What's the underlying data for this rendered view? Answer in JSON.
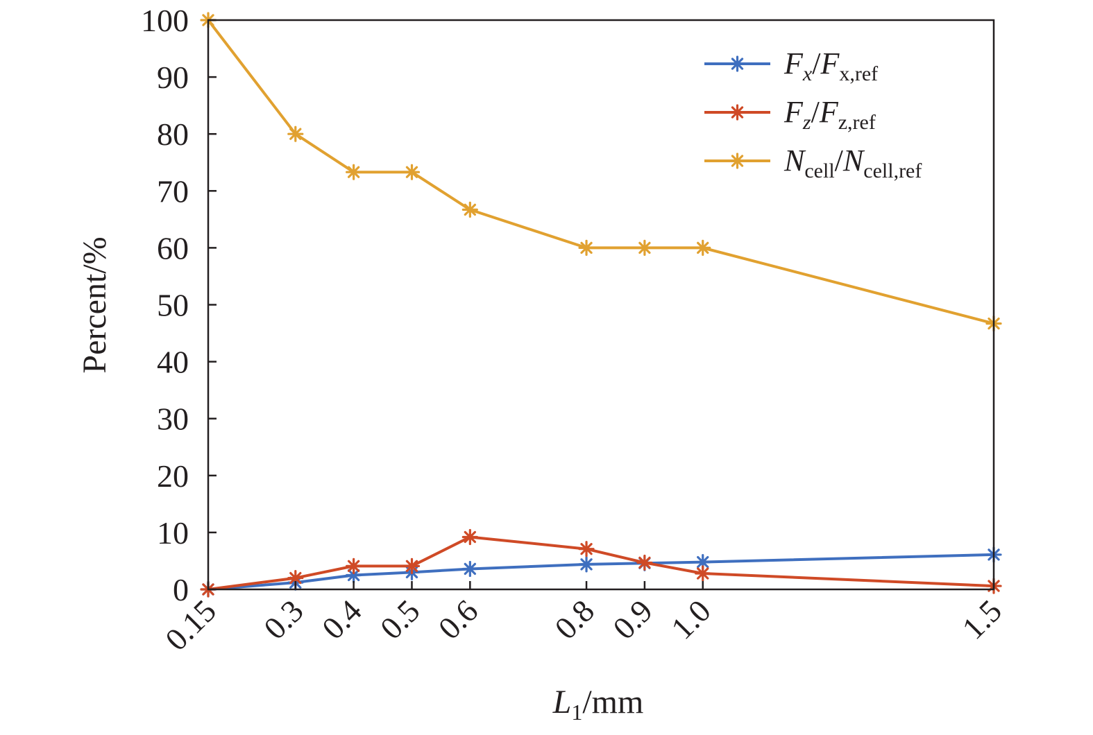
{
  "chart_data": {
    "type": "line",
    "x": [
      0.15,
      0.3,
      0.4,
      0.5,
      0.6,
      0.8,
      0.9,
      1.0,
      1.5
    ],
    "x_tick_labels": [
      "0.15",
      "0.3",
      "0.4",
      "0.5",
      "0.6",
      "0.8",
      "0.9",
      "1.0",
      "1.5"
    ],
    "xlabel": {
      "main": "L",
      "sub": "1",
      "unit": "/mm"
    },
    "ylabel": "Percent/%",
    "ylim": [
      0,
      100
    ],
    "y_ticks": [
      0,
      10,
      20,
      30,
      40,
      50,
      60,
      70,
      80,
      90,
      100
    ],
    "grid": false,
    "legend_position": "top-right",
    "series": [
      {
        "name": "Fx/Fx,ref",
        "legend": {
          "a": "F",
          "a_sub": "x",
          "b": "F",
          "b_sub": "x,ref"
        },
        "color": "#3f6fbf",
        "marker": "asterisk",
        "values": [
          0.0,
          1.2,
          2.5,
          3.0,
          3.6,
          4.4,
          4.6,
          4.8,
          6.1
        ]
      },
      {
        "name": "Fz/Fz,ref",
        "legend": {
          "a": "F",
          "a_sub": "z",
          "b": "F",
          "b_sub": "z,ref"
        },
        "color": "#cf4a26",
        "marker": "asterisk",
        "values": [
          0.0,
          2.0,
          4.1,
          4.1,
          9.2,
          7.1,
          4.7,
          2.8,
          0.6
        ]
      },
      {
        "name": "Ncell/Ncell,ref",
        "legend": {
          "a": "N",
          "a_sub": "cell",
          "b": "N",
          "b_sub": "cell,ref"
        },
        "color": "#e1a130",
        "marker": "asterisk",
        "values": [
          100.0,
          80.0,
          73.3,
          73.3,
          66.7,
          60.0,
          60.0,
          60.0,
          46.7
        ]
      }
    ]
  }
}
